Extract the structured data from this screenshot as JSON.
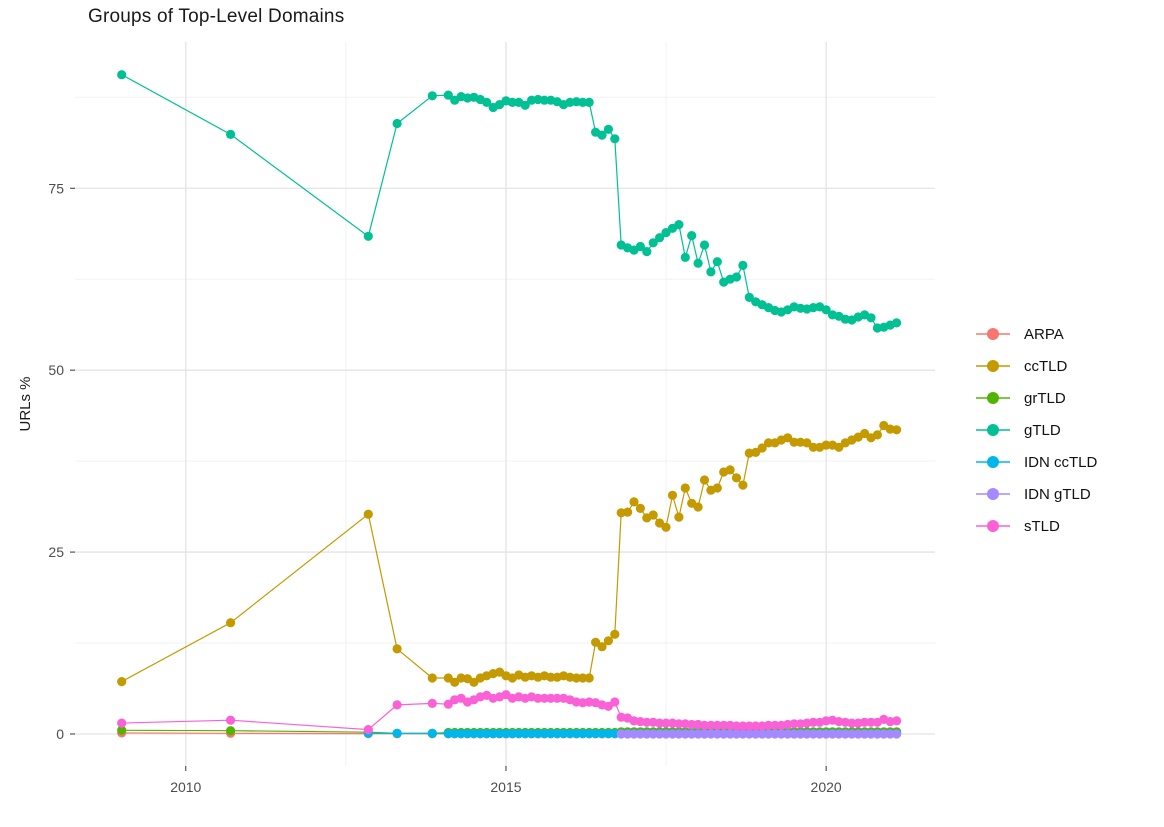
{
  "chart_data": {
    "type": "scatter",
    "title": "Groups of Top-Level Domains",
    "xlabel": "",
    "ylabel": "URLs %",
    "grid": "major+minor, light gray on white",
    "legend_position": "right",
    "x_domain": [
      2008.27,
      2021.7
    ],
    "y_domain": [
      -4.4,
      95.1
    ],
    "x_ticks": [
      {
        "v": 2010,
        "label": "2010"
      },
      {
        "v": 2015,
        "label": "2015"
      },
      {
        "v": 2020,
        "label": "2020"
      }
    ],
    "y_ticks": [
      {
        "v": 0,
        "label": "0"
      },
      {
        "v": 25,
        "label": "25"
      },
      {
        "v": 50,
        "label": "50"
      },
      {
        "v": 75,
        "label": "75"
      }
    ],
    "x_minor": [
      2012.5,
      2017.5
    ],
    "y_minor": [
      12.5,
      37.5,
      62.5,
      87.5
    ],
    "series": [
      {
        "name": "ARPA",
        "color": "#F8766D",
        "sparse": [
          [
            2009.0,
            0.15
          ],
          [
            2010.7,
            0.1
          ],
          [
            2012.85,
            0.05
          ],
          [
            2013.3,
            0.03
          ],
          [
            2013.85,
            0.02
          ]
        ],
        "dense": [
          {
            "x0": 2014.1,
            "dx": 0.1,
            "n": 71,
            "const": 0.02
          }
        ]
      },
      {
        "name": "ccTLD",
        "color": "#C49A00",
        "sparse": [
          [
            2009.0,
            7.2
          ],
          [
            2010.7,
            15.3
          ],
          [
            2012.85,
            30.2
          ],
          [
            2013.3,
            11.7
          ],
          [
            2013.85,
            7.7
          ]
        ],
        "dense": [
          {
            "x0": 2014.1,
            "dx": 0.1,
            "y": [
              7.7,
              7.1,
              7.7,
              7.6,
              7.1,
              7.7,
              8.0,
              8.3,
              8.5,
              8.0,
              7.7,
              8.1,
              7.8,
              8.0,
              7.8,
              8.0,
              7.8,
              7.8,
              8.0,
              7.8,
              7.7,
              7.7,
              7.7,
              12.6,
              12.0,
              12.8,
              13.7,
              30.4,
              30.5,
              31.9,
              31.0,
              29.7,
              30.1,
              29.0,
              28.4,
              32.8,
              29.8,
              33.8,
              31.7,
              31.2,
              34.9,
              33.5,
              33.8,
              36.0,
              36.3,
              35.2,
              34.2,
              38.6,
              38.7,
              39.3,
              40.0,
              40.0,
              40.4,
              40.7,
              40.1,
              40.1,
              40.0,
              39.4,
              39.4,
              39.7,
              39.7,
              39.4,
              40.0,
              40.4,
              40.8,
              41.3,
              40.7,
              41.1,
              42.4,
              41.9,
              41.8
            ]
          }
        ]
      },
      {
        "name": "grTLD",
        "color": "#53B400",
        "sparse": [
          [
            2009.0,
            0.5
          ],
          [
            2010.7,
            0.45
          ],
          [
            2012.85,
            0.25
          ],
          [
            2013.3,
            0.1
          ],
          [
            2013.85,
            0.1
          ]
        ],
        "dense": [
          {
            "x0": 2014.1,
            "dx": 0.1,
            "n": 27,
            "const": 0.2
          },
          {
            "x0": 2016.8,
            "dx": 0.1,
            "n": 44,
            "const": 0.3
          }
        ]
      },
      {
        "name": "gTLD",
        "color": "#00C094",
        "sparse": [
          [
            2009.0,
            90.6
          ],
          [
            2010.7,
            82.4
          ],
          [
            2012.85,
            68.4
          ],
          [
            2013.3,
            83.9
          ],
          [
            2013.85,
            87.7
          ]
        ],
        "dense": [
          {
            "x0": 2014.1,
            "dx": 0.1,
            "y": [
              87.8,
              87.1,
              87.6,
              87.4,
              87.5,
              87.2,
              86.8,
              86.1,
              86.5,
              87.0,
              86.8,
              86.8,
              86.4,
              87.1,
              87.2,
              87.1,
              87.1,
              86.9,
              86.5,
              86.8,
              86.9,
              86.8,
              86.8,
              82.7,
              82.3,
              83.1,
              81.8,
              67.2,
              66.8,
              66.5,
              67.0,
              66.3,
              67.5,
              68.2,
              68.9,
              69.5,
              70.0,
              65.5,
              68.5,
              64.7,
              67.2,
              63.5,
              64.9,
              62.1,
              62.5,
              62.8,
              64.4,
              60.0,
              59.4,
              59.0,
              58.6,
              58.2,
              58.0,
              58.3,
              58.7,
              58.5,
              58.4,
              58.6,
              58.7,
              58.3,
              57.6,
              57.4,
              57.0,
              56.9,
              57.3,
              57.6,
              57.2,
              55.8,
              55.9,
              56.2,
              56.5
            ]
          }
        ]
      },
      {
        "name": "IDN ccTLD",
        "color": "#00B6EB",
        "sparse": [
          [
            2012.85,
            0.1
          ],
          [
            2013.3,
            0.08
          ],
          [
            2013.85,
            0.08
          ]
        ],
        "dense": [
          {
            "x0": 2014.1,
            "dx": 0.1,
            "n": 71,
            "const": 0.05
          }
        ]
      },
      {
        "name": "IDN gTLD",
        "color": "#A58AFF",
        "sparse": [],
        "dense": [
          {
            "x0": 2016.8,
            "dx": 0.1,
            "n": 44,
            "const": 0.0
          }
        ]
      },
      {
        "name": "sTLD",
        "color": "#FB61D7",
        "sparse": [
          [
            2009.0,
            1.5
          ],
          [
            2010.7,
            1.9
          ],
          [
            2012.85,
            0.6
          ],
          [
            2013.3,
            4.0
          ],
          [
            2013.85,
            4.2
          ]
        ],
        "dense": [
          {
            "x0": 2014.1,
            "dx": 0.1,
            "y": [
              4.1,
              4.7,
              4.9,
              4.4,
              4.7,
              5.1,
              5.3,
              4.9,
              5.1,
              5.4,
              4.9,
              5.1,
              4.9,
              5.1,
              4.9,
              4.9,
              4.9,
              4.9,
              4.9,
              4.7,
              4.4,
              4.3,
              4.4,
              4.3,
              4.0,
              3.8,
              4.4,
              2.3,
              2.2,
              1.8,
              1.7,
              1.6,
              1.6,
              1.5,
              1.5,
              1.5,
              1.4,
              1.4,
              1.3,
              1.3,
              1.2,
              1.2,
              1.2,
              1.2,
              1.2,
              1.1,
              1.1,
              1.1,
              1.1,
              1.1,
              1.2,
              1.2,
              1.2,
              1.3,
              1.4,
              1.4,
              1.5,
              1.6,
              1.6,
              1.8,
              1.9,
              1.7,
              1.6,
              1.5,
              1.5,
              1.6,
              1.6,
              1.6,
              2.0,
              1.7,
              1.8
            ]
          }
        ]
      }
    ],
    "style": {
      "major_grid_color": "#E4E4E4",
      "minor_grid_color": "#F2F2F2",
      "tick_label_color": "#4d4d4d",
      "axis_title_color": "#1a1a1a",
      "tick_mark_color": "#333333",
      "point_radius": 4.6,
      "line_width": 1.2
    }
  }
}
